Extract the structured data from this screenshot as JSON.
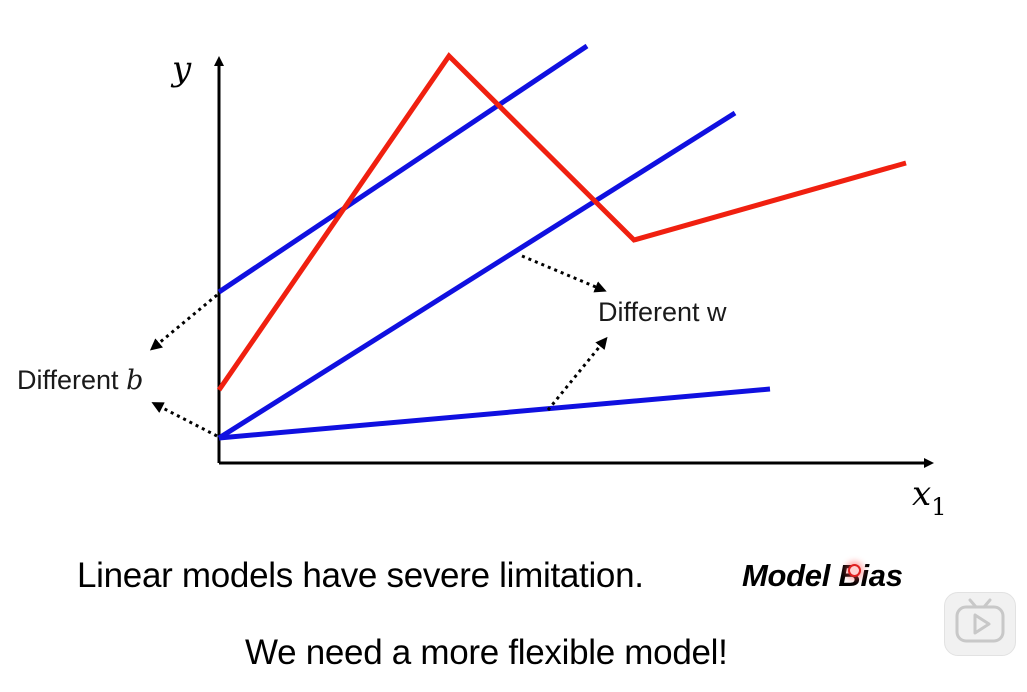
{
  "diagram": {
    "y_axis_label": "y",
    "x_axis_label": "x",
    "x_axis_subscript": "1",
    "annotation_b": "Different ",
    "annotation_b_symbol": "b",
    "annotation_w": "Different w",
    "colors": {
      "linear_lines": "#1010e0",
      "piecewise_curve": "#f02010",
      "axes": "#000000",
      "annotation_arrows": "#000000"
    }
  },
  "captions": {
    "line1": "Linear models have severe limitation.",
    "line1_emphasis": "Model Bias",
    "line2": "We need a more flexible model!"
  },
  "player": {
    "play_icon": "play-icon"
  }
}
